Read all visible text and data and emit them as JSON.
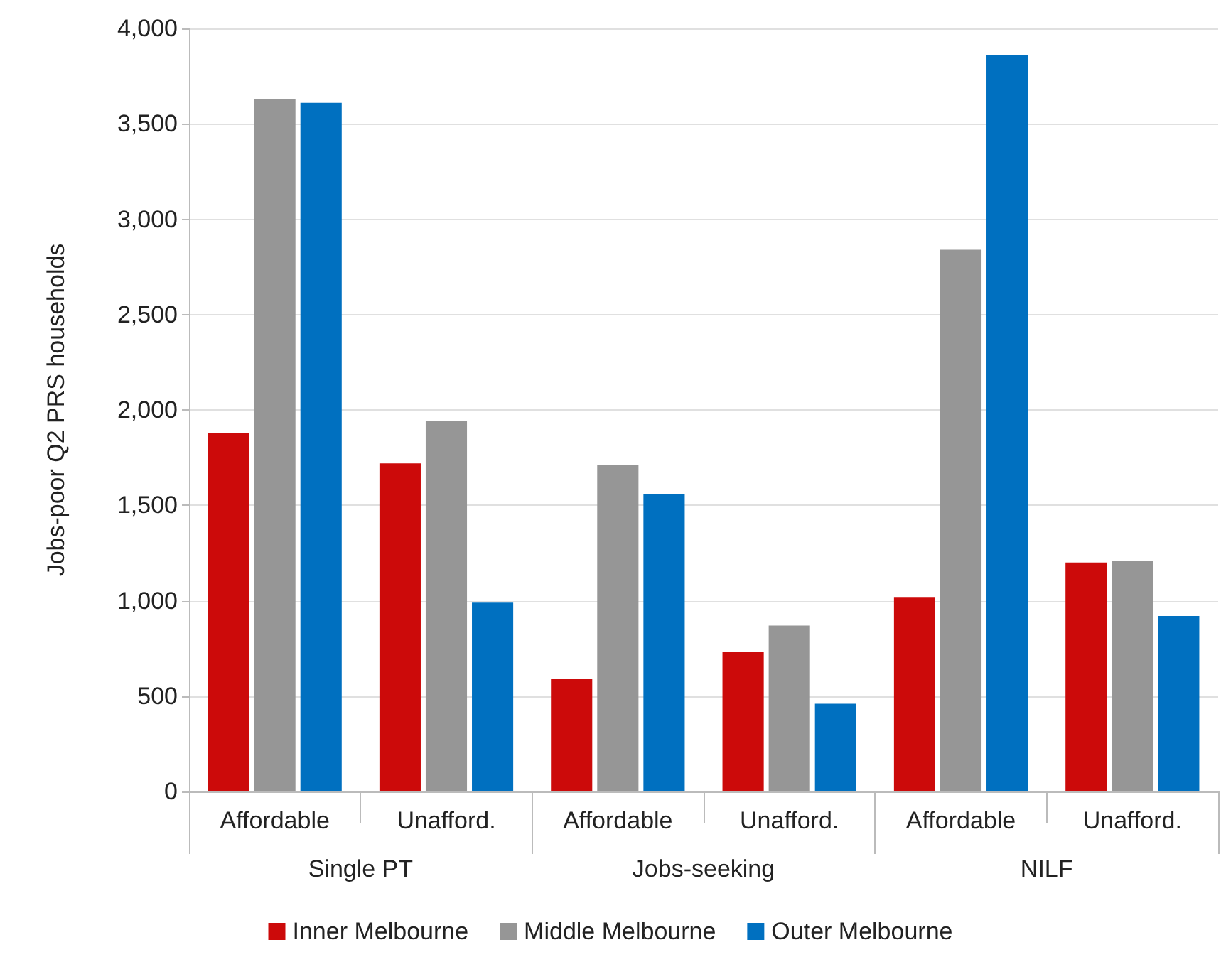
{
  "chart_data": {
    "type": "bar",
    "ylabel": "Jobs-poor Q2 PRS households",
    "categories": [
      "Affordable",
      "Unafford.",
      "Affordable",
      "Unafford.",
      "Affordable",
      "Unafford."
    ],
    "annotations": [
      "Single PT",
      "Jobs-seeking",
      "NILF"
    ],
    "series": [
      {
        "name": "Inner Melbourne",
        "color": "#cc0a0a",
        "values": [
          1880,
          1720,
          590,
          730,
          1020,
          1200
        ]
      },
      {
        "name": "Middle Melbourne",
        "color": "#969696",
        "values": [
          3630,
          1940,
          1710,
          870,
          2840,
          1210
        ]
      },
      {
        "name": "Outer Melbourne",
        "color": "#0070c0",
        "values": [
          3610,
          990,
          1560,
          460,
          3860,
          920
        ]
      }
    ],
    "ylim": [
      0,
      4000
    ],
    "yticks": [
      0,
      500,
      {
        "value": 1000,
        "label": "1,000"
      },
      {
        "value": 1500,
        "label": "1,500"
      },
      {
        "value": 2000,
        "label": "2,000"
      },
      {
        "value": 2500,
        "label": "2,500"
      },
      {
        "value": 3000,
        "label": "3,000"
      },
      {
        "value": 3500,
        "label": "3,500"
      },
      {
        "value": 4000,
        "label": "4,000"
      }
    ],
    "grid": "y",
    "legend": "bottom"
  }
}
